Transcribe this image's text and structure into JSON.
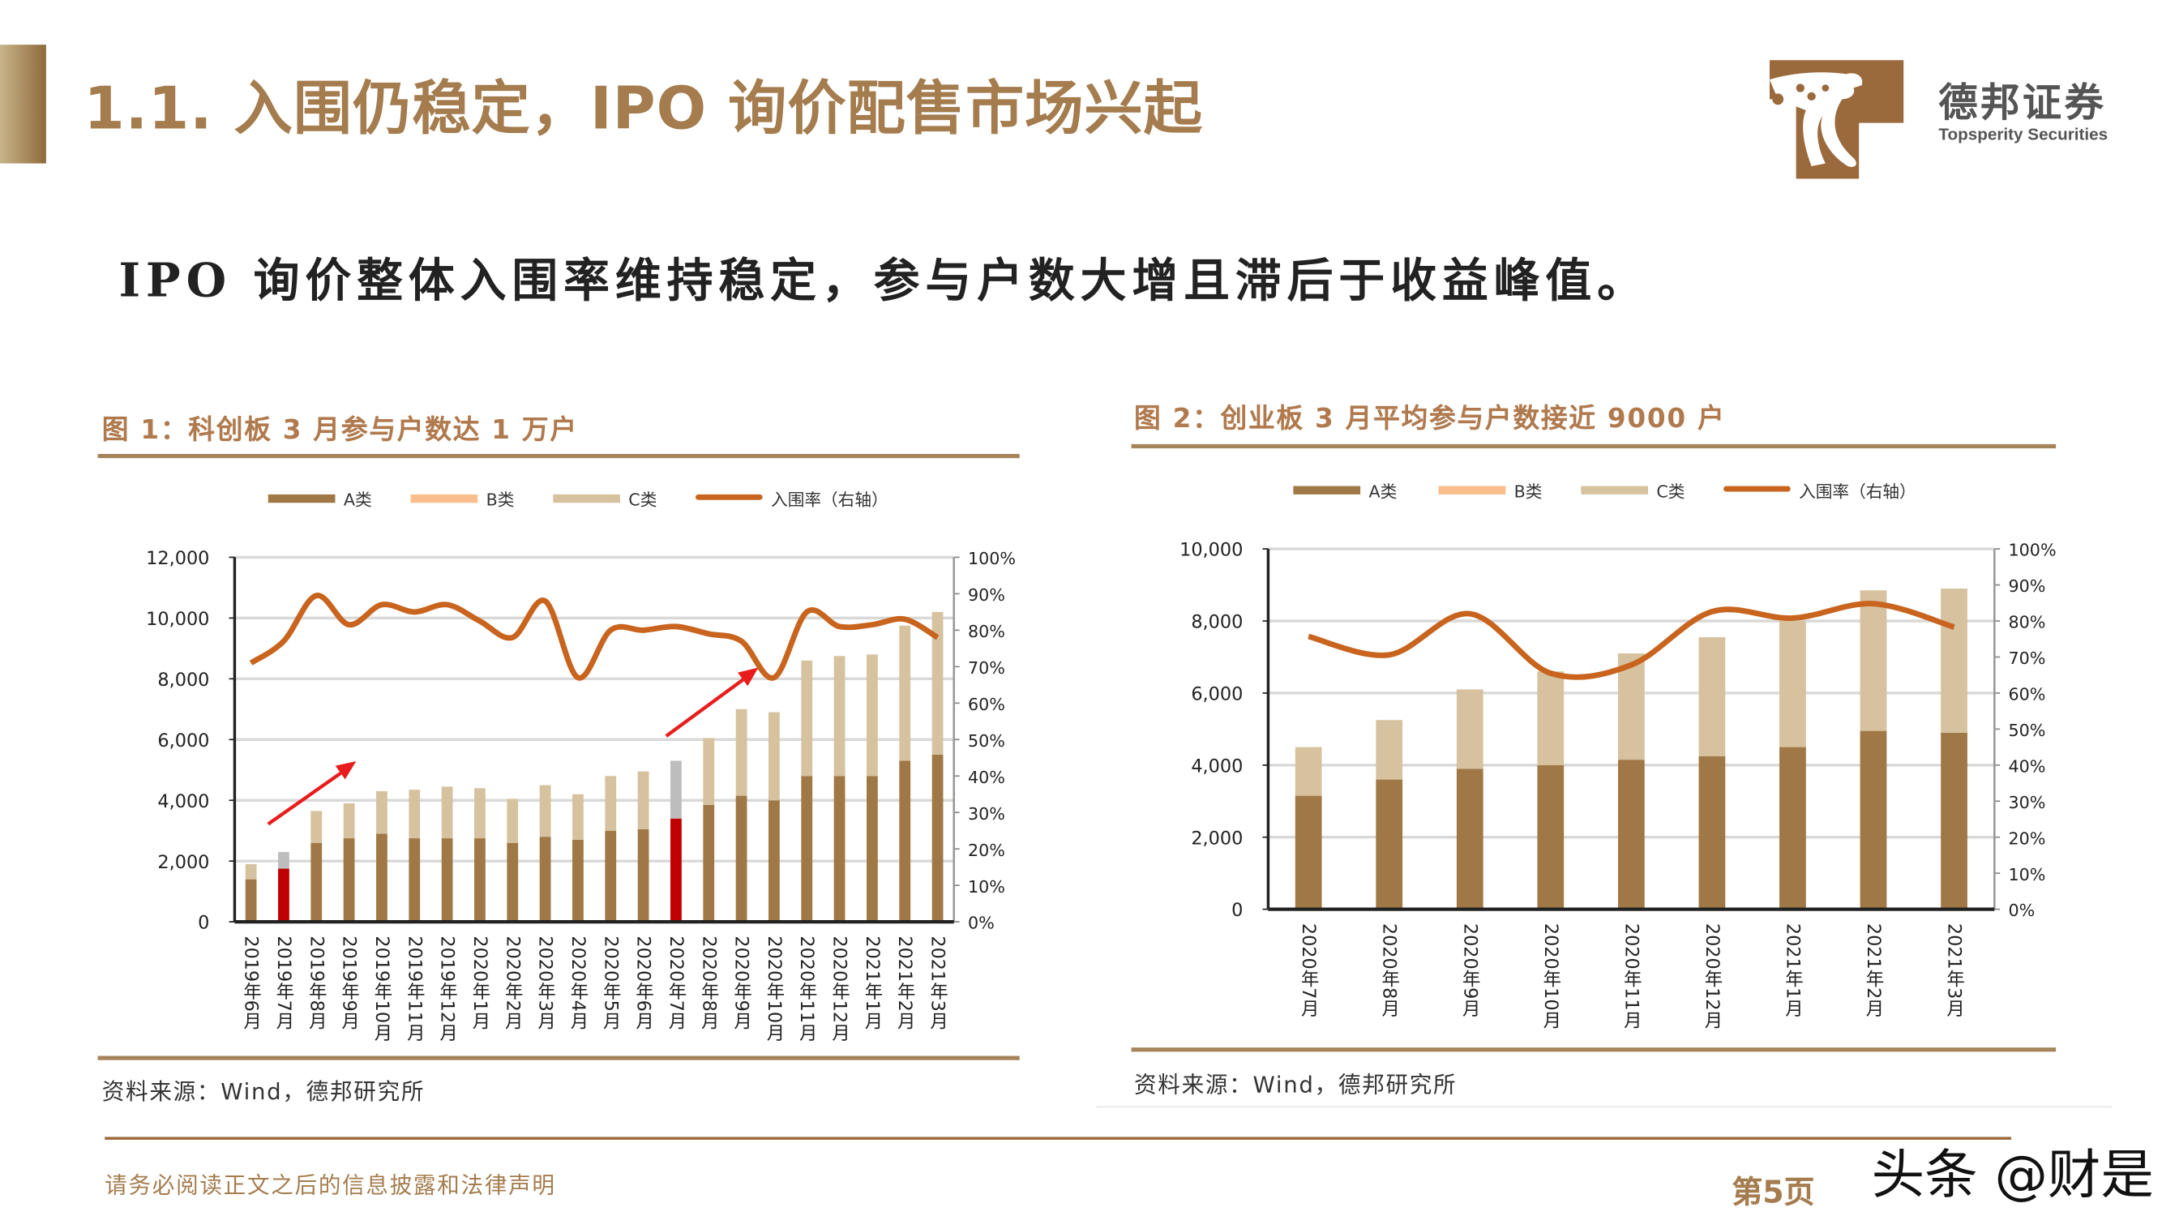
{
  "header": {
    "title": "1.1. 入围仍稳定，IPO 询价配售市场兴起",
    "logo_cn": "德邦证券",
    "logo_en": "Topsperity Securities",
    "brand_color": "#9a6a3c"
  },
  "subtitle": "IPO 询价整体入围率维持稳定，参与户数大增且滞后于收益峰值。",
  "figures": [
    {
      "title": "图 1：科创板 3 月参与户数达 1 万户",
      "source": "资料来源：Wind，德邦研究所"
    },
    {
      "title": "图 2：创业板 3 月平均参与户数接近 9000 户",
      "source": "资料来源：Wind，德邦研究所"
    }
  ],
  "footer": {
    "disclaimer": "请务必阅读正文之后的信息披露和法律声明",
    "page": "第5页",
    "watermark": "头条 @财是"
  },
  "chart_data": [
    {
      "type": "bar",
      "stacked": true,
      "legend": [
        "A类",
        "B类",
        "C类",
        "入围率（右轴）"
      ],
      "legend_position": "top",
      "colors": {
        "A": "#a07845",
        "A_highlight": "#c00000",
        "B": "#f9be8c",
        "B_highlight": "#bdbdbd",
        "C": "#d6c29e",
        "rate": "#c8641e"
      },
      "categories": [
        "2019年6月",
        "2019年7月",
        "2019年8月",
        "2019年9月",
        "2019年10月",
        "2019年11月",
        "2019年12月",
        "2020年1月",
        "2020年2月",
        "2020年3月",
        "2020年4月",
        "2020年5月",
        "2020年6月",
        "2020年7月",
        "2020年8月",
        "2020年9月",
        "2020年10月",
        "2020年11月",
        "2020年12月",
        "2021年1月",
        "2021年2月",
        "2021年3月"
      ],
      "highlight_categories": [
        "2019年7月",
        "2020年7月"
      ],
      "series": [
        {
          "name": "A类",
          "values": [
            1400,
            1750,
            2600,
            2750,
            2900,
            2750,
            2750,
            2750,
            2600,
            2800,
            2700,
            3000,
            3050,
            3400,
            3850,
            4150,
            4000,
            4800,
            4800,
            4800,
            5300,
            5500
          ]
        },
        {
          "name": "B类",
          "values": [
            0,
            550,
            0,
            0,
            0,
            0,
            0,
            0,
            0,
            0,
            0,
            0,
            0,
            1900,
            0,
            0,
            0,
            0,
            0,
            0,
            0,
            0
          ]
        },
        {
          "name": "C类",
          "values": [
            500,
            0,
            1050,
            1150,
            1400,
            1600,
            1700,
            1650,
            1450,
            1700,
            1500,
            1800,
            1900,
            0,
            2200,
            2850,
            2900,
            3800,
            3950,
            4000,
            4450,
            4700
          ]
        },
        {
          "name": "入围率（右轴）",
          "axis": "right",
          "type": "line",
          "values": [
            71,
            77,
            89.5,
            81.5,
            87,
            85,
            87,
            82.5,
            78,
            88,
            67,
            80,
            80,
            81,
            79,
            77,
            67,
            85,
            81,
            81.5,
            83,
            78
          ]
        }
      ],
      "y_left": {
        "min": 0,
        "max": 12000,
        "ticks": [
          "0",
          "2,000",
          "4,000",
          "6,000",
          "8,000",
          "10,000",
          "12,000"
        ]
      },
      "y_right": {
        "min": 0,
        "max": 100,
        "ticks": [
          "0%",
          "10%",
          "20%",
          "30%",
          "40%",
          "50%",
          "60%",
          "70%",
          "80%",
          "90%",
          "100%"
        ]
      },
      "grid": true,
      "annotations": [
        "red-arrow-up",
        "red-arrow-up"
      ]
    },
    {
      "type": "bar",
      "stacked": true,
      "legend": [
        "A类",
        "B类",
        "C类",
        "入围率（右轴）"
      ],
      "legend_position": "top",
      "colors": {
        "A": "#a07845",
        "B": "#f9be8c",
        "C": "#d6c29e",
        "rate": "#c8641e"
      },
      "categories": [
        "2020年7月",
        "2020年8月",
        "2020年9月",
        "2020年10月",
        "2020年11月",
        "2020年12月",
        "2021年1月",
        "2021年2月",
        "2021年3月"
      ],
      "series": [
        {
          "name": "A类",
          "values": [
            3150,
            3600,
            3900,
            4000,
            4150,
            4250,
            4500,
            4950,
            4900
          ]
        },
        {
          "name": "B类",
          "values": [
            0,
            0,
            0,
            0,
            0,
            0,
            0,
            0,
            0
          ]
        },
        {
          "name": "C类",
          "values": [
            1350,
            1650,
            2200,
            2600,
            2950,
            3300,
            3500,
            3900,
            4000
          ]
        },
        {
          "name": "入围率（右轴）",
          "axis": "right",
          "type": "line",
          "values": [
            75.7,
            70.6,
            82,
            65.5,
            67.8,
            82.6,
            80.8,
            84.8,
            78.3
          ]
        }
      ],
      "y_left": {
        "min": 0,
        "max": 10000,
        "ticks": [
          "0",
          "2,000",
          "4,000",
          "6,000",
          "8,000",
          "10,000"
        ]
      },
      "y_right": {
        "min": 0,
        "max": 100,
        "ticks": [
          "0%",
          "10%",
          "20%",
          "30%",
          "40%",
          "50%",
          "60%",
          "70%",
          "80%",
          "90%",
          "100%"
        ]
      },
      "grid": true
    }
  ]
}
